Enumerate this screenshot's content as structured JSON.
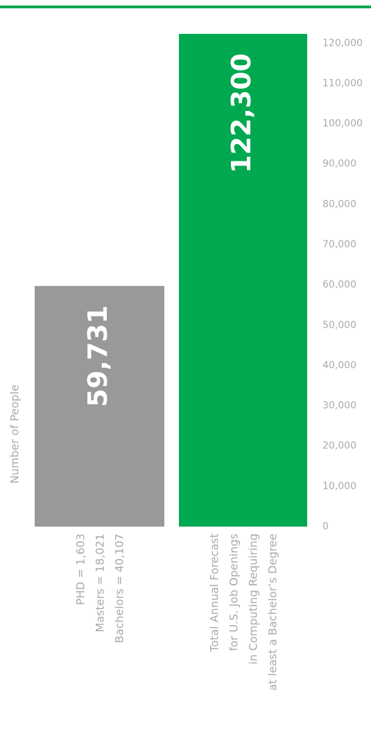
{
  "chart_data": {
    "type": "bar",
    "y_axis_label": "Number of People",
    "categories": [
      [
        "PHD = 1,603",
        "Masters = 18,021",
        "Bachelors = 40,107"
      ],
      [
        "Total Annual Forecast",
        "for U.S. Job Openings",
        "in Computing Requiring",
        "at least a Bachelor’s Degree"
      ]
    ],
    "values": [
      59731,
      122300
    ],
    "value_labels": [
      "59,731",
      "122,300"
    ],
    "colors": [
      "#999999",
      "#00a84f"
    ],
    "ylim": [
      0,
      124000
    ],
    "yticks": [
      0,
      {
        "value": 10000,
        "label": "10,000"
      },
      {
        "value": 20000,
        "label": "20,000"
      },
      {
        "value": 30000,
        "label": "30,000"
      },
      {
        "value": 40000,
        "label": "40,000"
      },
      {
        "value": 50000,
        "label": "50,000"
      },
      {
        "value": 60000,
        "label": "60,000"
      },
      {
        "value": 70000,
        "label": "70,000"
      },
      {
        "value": 80000,
        "label": "80,000"
      },
      {
        "value": 90000,
        "label": "90,000"
      },
      {
        "value": 100000,
        "label": "100,000"
      },
      {
        "value": 110000,
        "label": "110,000"
      },
      {
        "value": 120000,
        "label": "120,000"
      }
    ],
    "grid": false
  }
}
